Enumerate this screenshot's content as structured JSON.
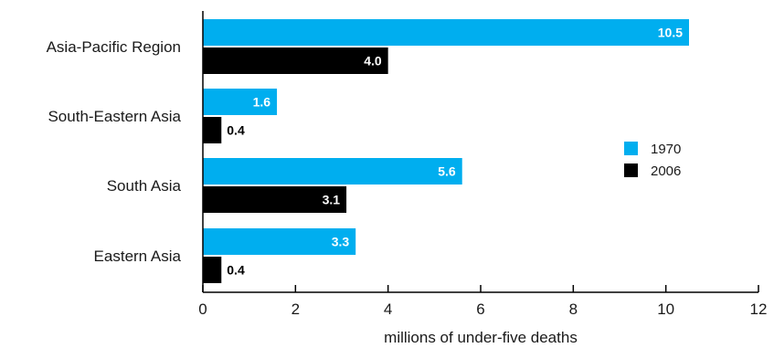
{
  "chart_data": {
    "type": "bar",
    "orientation": "horizontal",
    "categories": [
      "Asia-Pacific Region",
      "South-Eastern Asia",
      "South Asia",
      "Eastern Asia"
    ],
    "series": [
      {
        "name": "1970",
        "values": [
          10.5,
          1.6,
          5.6,
          3.3
        ],
        "color": "#00aeef",
        "label_color": "#ffffff"
      },
      {
        "name": "2006",
        "values": [
          4.0,
          0.4,
          3.1,
          0.4
        ],
        "color": "#000000",
        "label_color": "#ffffff"
      }
    ],
    "value_labels": [
      [
        "10.5",
        "1.6",
        "5.6",
        "3.3"
      ],
      [
        "4.0",
        "0.4",
        "3.1",
        "0.4"
      ]
    ],
    "xlabel": "millions of under-five deaths",
    "xlim": [
      0,
      12
    ],
    "xticks": [
      0,
      2,
      4,
      6,
      8,
      10,
      12
    ],
    "grid": false,
    "legend_position": "right"
  }
}
